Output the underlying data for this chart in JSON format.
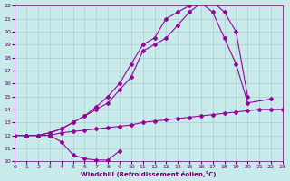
{
  "xlabel": "Windchill (Refroidissement éolien,°C)",
  "background_color": "#c8eaea",
  "line_color": "#990099",
  "grid_color": "#aacccc",
  "xmin": 0,
  "xmax": 23,
  "ymin": 10,
  "ymax": 22,
  "series": [
    {
      "x": [
        0,
        1,
        2,
        3,
        4,
        5,
        6,
        7,
        8,
        9
      ],
      "y": [
        12,
        12,
        12,
        12,
        11.5,
        10.5,
        10.2,
        10.1,
        10.1,
        10.8
      ]
    },
    {
      "x": [
        0,
        1,
        2,
        3,
        4,
        5,
        6,
        7,
        8,
        9,
        10,
        11,
        12,
        13,
        14,
        15,
        16,
        17,
        18,
        19,
        20,
        21,
        22,
        23
      ],
      "y": [
        12,
        12,
        12,
        12,
        12.2,
        12.3,
        12.4,
        12.5,
        12.6,
        12.7,
        12.8,
        13.0,
        13.1,
        13.2,
        13.3,
        13.4,
        13.5,
        13.6,
        13.7,
        13.8,
        13.9,
        14.0,
        14.0,
        14.0
      ]
    },
    {
      "x": [
        0,
        1,
        2,
        3,
        4,
        5,
        6,
        7,
        8,
        9,
        10,
        11,
        12,
        13,
        14,
        15,
        16,
        17,
        18,
        19,
        20,
        22
      ],
      "y": [
        12,
        12,
        12,
        12.2,
        12.5,
        13.0,
        13.5,
        14.0,
        14.5,
        15.5,
        16.5,
        18.5,
        19.0,
        19.5,
        20.5,
        21.5,
        22.2,
        21.5,
        19.5,
        17.5,
        14.5,
        14.8
      ]
    },
    {
      "x": [
        0,
        1,
        2,
        3,
        4,
        5,
        6,
        7,
        8,
        9,
        10,
        11,
        12,
        13,
        14,
        15,
        16,
        17,
        18,
        19,
        20
      ],
      "y": [
        12,
        12,
        12,
        12.2,
        12.5,
        13.0,
        13.5,
        14.2,
        15.0,
        16.0,
        17.5,
        19.0,
        19.5,
        21.0,
        21.5,
        22.0,
        22.3,
        22.3,
        21.5,
        20.0,
        15.0
      ]
    }
  ]
}
